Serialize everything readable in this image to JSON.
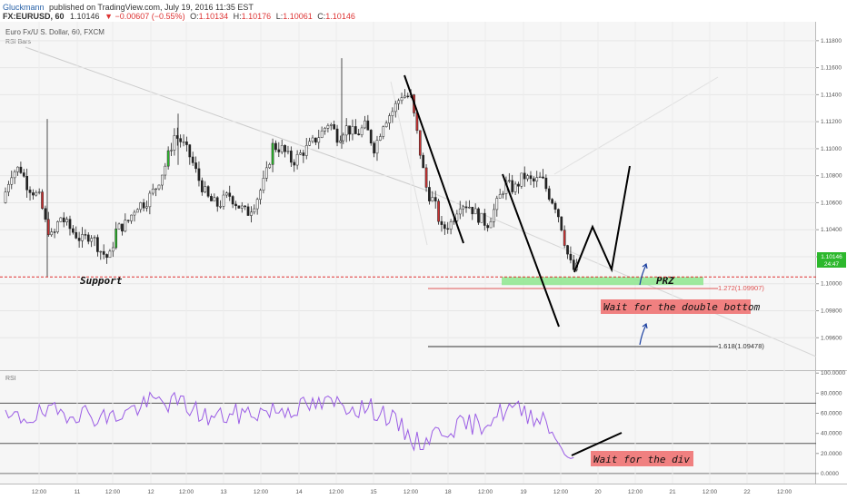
{
  "header": {
    "author": "Gluckmann",
    "published": "published on TradingView.com, July 19, 2016 11:35 EST",
    "symbol": "FX:EURUSD, 60",
    "last": "1.10146",
    "change": "▼ −0.00607 (−0.55%)",
    "open_label": "O:",
    "open": "1.10134",
    "high_label": "H:",
    "high": "1.10176",
    "low_label": "L:",
    "low": "1.10061",
    "close_label": "C:",
    "close": "1.10146"
  },
  "title": "Euro Fx/U.S. Dollar, 60, FXCM",
  "indicator_label": "RSI Bars",
  "rsi_label": "RSI",
  "price_badge": {
    "value": "1.10146",
    "countdown": "24:47"
  },
  "annotations": {
    "support": "Support",
    "prz": "PRZ",
    "double_bottom": "Wait for the double bottom",
    "divergence": "Wait for the div",
    "fib_1272": "1.272(1.09907)",
    "fib_1618": "1.618(1.09478)"
  },
  "colors": {
    "bull": "#ffffff",
    "bear": "#222222",
    "rsi_bull": "#2db82d",
    "rsi_bear": "#c83232",
    "rsi_line": "#9b5de5",
    "support": "#e03030",
    "prz": "#8ee68e",
    "note": "#f08080"
  },
  "chart_data": {
    "type": "candlestick",
    "price_axis": {
      "ylim": [
        1.0936,
        1.1194
      ],
      "ticks": [
        "1.11800",
        "1.11600",
        "1.11400",
        "1.11200",
        "1.11000",
        "1.10800",
        "1.10600",
        "1.10400",
        "1.10200",
        "1.10000",
        "1.09800",
        "1.09600"
      ]
    },
    "rsi_axis": {
      "ylim": [
        -10,
        102
      ],
      "ticks": [
        "100.0000",
        "80.0000",
        "60.0000",
        "40.0000",
        "20.0000",
        "0.0000"
      ],
      "levels": [
        70,
        30
      ]
    },
    "time_axis": {
      "ticks": [
        "12:00",
        "11",
        "12:00",
        "12",
        "12:00",
        "13",
        "12:00",
        "14",
        "12:00",
        "15",
        "12:00",
        "18",
        "12:00",
        "19",
        "12:00",
        "20",
        "12:00",
        "21",
        "12:00",
        "22",
        "12:00"
      ]
    },
    "support_level": 1.1005,
    "prz": [
      1.0999,
      1.1005
    ],
    "fibonacci": [
      {
        "ratio": 1.272,
        "price": 1.09907
      },
      {
        "ratio": 1.618,
        "price": 1.09478
      }
    ],
    "last_price": 1.10146,
    "rsi_last": 14
  }
}
